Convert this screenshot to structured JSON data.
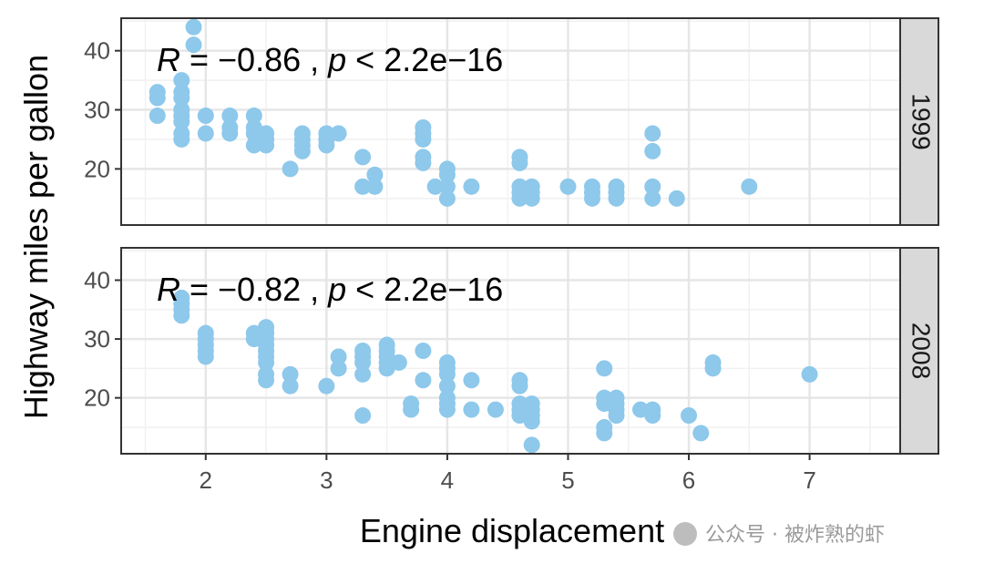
{
  "chart_data": {
    "type": "scatter",
    "xlabel": "Engine displacement",
    "ylabel": "Highway miles per gallon",
    "xlim": [
      1.3,
      7.75
    ],
    "ylim": [
      10.5,
      45.5
    ],
    "x_ticks": [
      2,
      3,
      4,
      5,
      6,
      7
    ],
    "y_ticks": [
      20,
      30,
      40
    ],
    "grid": true,
    "theme": "bw",
    "point_color": "#8EC8EB",
    "strip_fill": "#D9D9D9",
    "panels": [
      {
        "strip": "1999",
        "annotation": {
          "r_label": "R",
          "r_text": " = −0.86 , ",
          "p_label": "p",
          "p_text": " < 2.2e−16"
        },
        "points": [
          [
            1.6,
            29
          ],
          [
            1.6,
            32
          ],
          [
            1.6,
            33
          ],
          [
            1.8,
            25
          ],
          [
            1.8,
            26
          ],
          [
            1.8,
            28
          ],
          [
            1.8,
            29
          ],
          [
            1.8,
            30
          ],
          [
            1.8,
            32
          ],
          [
            1.8,
            33
          ],
          [
            1.8,
            35
          ],
          [
            1.9,
            41
          ],
          [
            1.9,
            44
          ],
          [
            2.0,
            26
          ],
          [
            2.0,
            29
          ],
          [
            2.2,
            26
          ],
          [
            2.2,
            27
          ],
          [
            2.2,
            29
          ],
          [
            2.4,
            24
          ],
          [
            2.4,
            26
          ],
          [
            2.4,
            27
          ],
          [
            2.4,
            29
          ],
          [
            2.5,
            24
          ],
          [
            2.5,
            25
          ],
          [
            2.5,
            26
          ],
          [
            2.7,
            20
          ],
          [
            2.8,
            23
          ],
          [
            2.8,
            24
          ],
          [
            2.8,
            25
          ],
          [
            2.8,
            26
          ],
          [
            3.0,
            24
          ],
          [
            3.0,
            25
          ],
          [
            3.0,
            26
          ],
          [
            3.1,
            26
          ],
          [
            3.3,
            17
          ],
          [
            3.3,
            22
          ],
          [
            3.4,
            17
          ],
          [
            3.4,
            19
          ],
          [
            3.8,
            21
          ],
          [
            3.8,
            22
          ],
          [
            3.8,
            25
          ],
          [
            3.8,
            26
          ],
          [
            3.8,
            27
          ],
          [
            3.9,
            17
          ],
          [
            4.0,
            15
          ],
          [
            4.0,
            17
          ],
          [
            4.0,
            19
          ],
          [
            4.0,
            20
          ],
          [
            4.2,
            17
          ],
          [
            4.6,
            15
          ],
          [
            4.6,
            16
          ],
          [
            4.6,
            17
          ],
          [
            4.6,
            21
          ],
          [
            4.6,
            22
          ],
          [
            4.7,
            15
          ],
          [
            4.7,
            16
          ],
          [
            4.7,
            17
          ],
          [
            5.0,
            17
          ],
          [
            5.2,
            15
          ],
          [
            5.2,
            16
          ],
          [
            5.2,
            17
          ],
          [
            5.4,
            15
          ],
          [
            5.4,
            16
          ],
          [
            5.4,
            17
          ],
          [
            5.7,
            15
          ],
          [
            5.7,
            17
          ],
          [
            5.7,
            23
          ],
          [
            5.7,
            26
          ],
          [
            5.9,
            15
          ],
          [
            6.5,
            17
          ]
        ]
      },
      {
        "strip": "2008",
        "annotation": {
          "r_label": "R",
          "r_text": " = −0.82 , ",
          "p_label": "p",
          "p_text": " < 2.2e−16"
        },
        "points": [
          [
            1.8,
            34
          ],
          [
            1.8,
            35
          ],
          [
            1.8,
            36
          ],
          [
            1.8,
            37
          ],
          [
            2.0,
            27
          ],
          [
            2.0,
            28
          ],
          [
            2.0,
            29
          ],
          [
            2.0,
            30
          ],
          [
            2.0,
            31
          ],
          [
            2.4,
            30
          ],
          [
            2.4,
            31
          ],
          [
            2.5,
            23
          ],
          [
            2.5,
            24
          ],
          [
            2.5,
            26
          ],
          [
            2.5,
            27
          ],
          [
            2.5,
            28
          ],
          [
            2.5,
            29
          ],
          [
            2.5,
            30
          ],
          [
            2.5,
            31
          ],
          [
            2.5,
            32
          ],
          [
            2.7,
            22
          ],
          [
            2.7,
            24
          ],
          [
            3.0,
            22
          ],
          [
            3.1,
            25
          ],
          [
            3.1,
            27
          ],
          [
            3.3,
            17
          ],
          [
            3.3,
            24
          ],
          [
            3.3,
            26
          ],
          [
            3.3,
            27
          ],
          [
            3.3,
            28
          ],
          [
            3.5,
            25
          ],
          [
            3.5,
            26
          ],
          [
            3.5,
            27
          ],
          [
            3.5,
            28
          ],
          [
            3.5,
            29
          ],
          [
            3.6,
            26
          ],
          [
            3.7,
            18
          ],
          [
            3.7,
            19
          ],
          [
            3.8,
            23
          ],
          [
            3.8,
            28
          ],
          [
            4.0,
            18
          ],
          [
            4.0,
            19
          ],
          [
            4.0,
            20
          ],
          [
            4.0,
            22
          ],
          [
            4.0,
            24
          ],
          [
            4.0,
            25
          ],
          [
            4.0,
            26
          ],
          [
            4.2,
            18
          ],
          [
            4.2,
            23
          ],
          [
            4.4,
            18
          ],
          [
            4.6,
            17
          ],
          [
            4.6,
            18
          ],
          [
            4.6,
            19
          ],
          [
            4.6,
            22
          ],
          [
            4.6,
            23
          ],
          [
            4.7,
            12
          ],
          [
            4.7,
            16
          ],
          [
            4.7,
            17
          ],
          [
            4.7,
            18
          ],
          [
            4.7,
            19
          ],
          [
            5.3,
            14
          ],
          [
            5.3,
            15
          ],
          [
            5.3,
            19
          ],
          [
            5.3,
            20
          ],
          [
            5.3,
            25
          ],
          [
            5.4,
            17
          ],
          [
            5.4,
            18
          ],
          [
            5.4,
            19
          ],
          [
            5.4,
            20
          ],
          [
            5.6,
            18
          ],
          [
            5.7,
            17
          ],
          [
            5.7,
            18
          ],
          [
            6.0,
            17
          ],
          [
            6.1,
            14
          ],
          [
            6.2,
            25
          ],
          [
            6.2,
            26
          ],
          [
            7.0,
            24
          ]
        ]
      }
    ]
  },
  "watermark": "公众号 · 被炸熟的虾"
}
